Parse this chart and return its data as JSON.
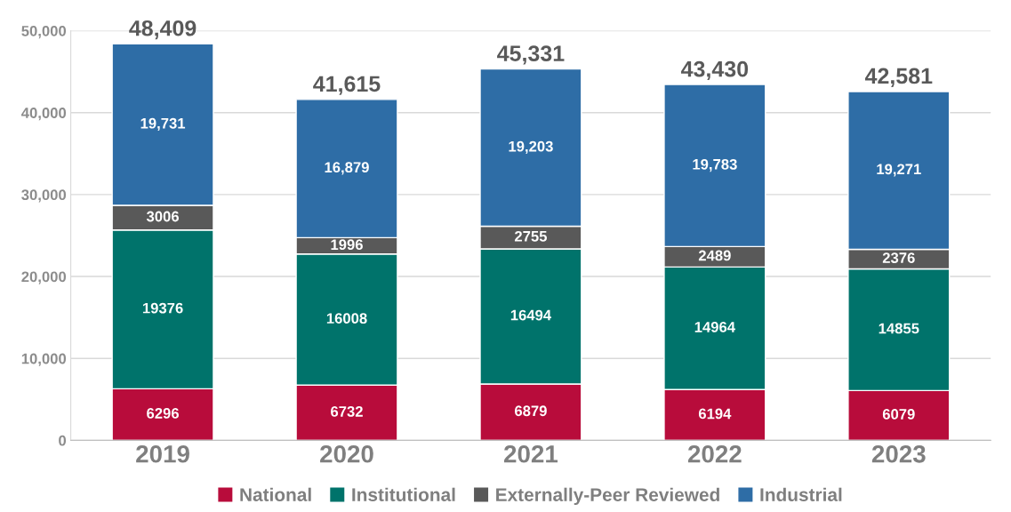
{
  "chart_data": {
    "type": "bar",
    "stacked": true,
    "categories": [
      "2019",
      "2020",
      "2021",
      "2022",
      "2023"
    ],
    "series": [
      {
        "name": "National",
        "color": "#b80c3b",
        "values": [
          6296,
          6732,
          6879,
          6194,
          6079
        ],
        "value_labels": [
          "6296",
          "6732",
          "6879",
          "6194",
          "6079"
        ]
      },
      {
        "name": "Institutional",
        "color": "#00736b",
        "values": [
          19376,
          16008,
          16494,
          14964,
          14855
        ],
        "value_labels": [
          "19376",
          "16008",
          "16494",
          "14964",
          "14855"
        ]
      },
      {
        "name": "Externally-Peer Reviewed",
        "color": "#595959",
        "values": [
          3006,
          1996,
          2755,
          2489,
          2376
        ],
        "value_labels": [
          "3006",
          "1996",
          "2755",
          "2489",
          "2376"
        ]
      },
      {
        "name": "Industrial",
        "color": "#2e6da6",
        "values": [
          19731,
          16879,
          19203,
          19783,
          19271
        ],
        "value_labels": [
          "19,731",
          "16,879",
          "19,203",
          "19,783",
          "19,271"
        ]
      }
    ],
    "totals": [
      "48,409",
      "41,615",
      "45,331",
      "43,430",
      "42,581"
    ],
    "ylim": [
      0,
      50000
    ],
    "yticks": [
      0,
      {
        "value": 10000,
        "label": "10,000"
      },
      {
        "value": 20000,
        "label": "20,000"
      },
      {
        "value": 30000,
        "label": "30,000"
      },
      {
        "value": 40000,
        "label": "40,000"
      },
      {
        "value": 50000,
        "label": "50,000"
      }
    ],
    "grid": "y",
    "legend": "bottom"
  }
}
